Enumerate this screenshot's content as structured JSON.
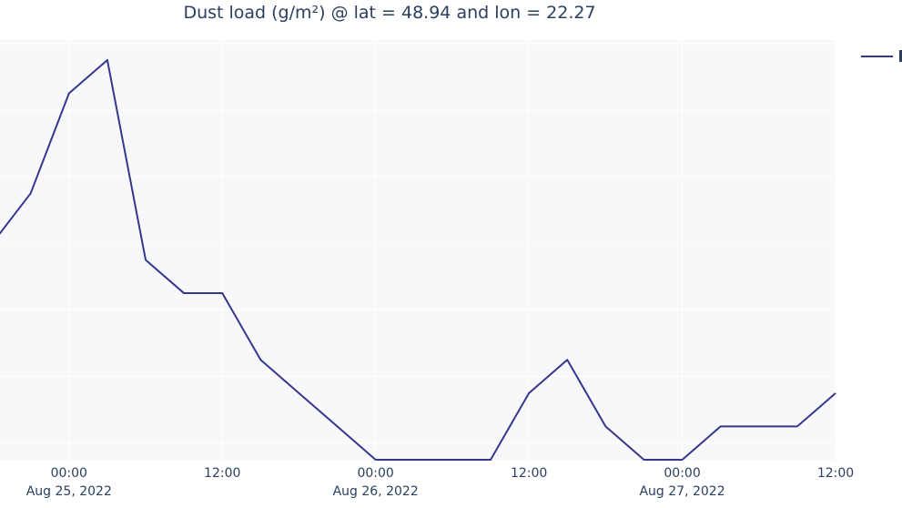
{
  "chart_data": {
    "type": "line",
    "title": "Dust load (g/m²) @ lat = 48.94 and lon = 22.27",
    "xlabel": "",
    "ylabel": "",
    "grid": true,
    "legend_position": "top-right",
    "x_tick_labels": [
      {
        "time": "2022-08-25T00:00",
        "line1": "00:00",
        "line2": "Aug 25, 2022"
      },
      {
        "time": "2022-08-25T12:00",
        "line1": "12:00",
        "line2": ""
      },
      {
        "time": "2022-08-26T00:00",
        "line1": "00:00",
        "line2": "Aug 26, 2022"
      },
      {
        "time": "2022-08-26T12:00",
        "line1": "12:00",
        "line2": ""
      },
      {
        "time": "2022-08-27T00:00",
        "line1": "00:00",
        "line2": "Aug 27, 2022"
      },
      {
        "time": "2022-08-27T12:00",
        "line1": "12:00",
        "line2": ""
      }
    ],
    "x_range": [
      "2022-08-24T18:36",
      "2022-08-27T12:00"
    ],
    "y_range": [
      0,
      12.6
    ],
    "y_gridlines": [
      0.5,
      2.5,
      4.5,
      6.5,
      8.5,
      10.5,
      12.5
    ],
    "series": [
      {
        "color": "#35378f",
        "points": [
          {
            "x": "2022-08-24T18:00",
            "y": 6.5
          },
          {
            "x": "2022-08-24T21:00",
            "y": 8.0
          },
          {
            "x": "2022-08-25T00:00",
            "y": 11.0
          },
          {
            "x": "2022-08-25T03:00",
            "y": 12.0
          },
          {
            "x": "2022-08-25T06:00",
            "y": 6.0
          },
          {
            "x": "2022-08-25T09:00",
            "y": 5.0
          },
          {
            "x": "2022-08-25T12:00",
            "y": 5.0
          },
          {
            "x": "2022-08-25T15:00",
            "y": 3.0
          },
          {
            "x": "2022-08-25T18:00",
            "y": 2.0
          },
          {
            "x": "2022-08-25T21:00",
            "y": 1.0
          },
          {
            "x": "2022-08-26T00:00",
            "y": 0.0
          },
          {
            "x": "2022-08-26T03:00",
            "y": 0.0
          },
          {
            "x": "2022-08-26T06:00",
            "y": 0.0
          },
          {
            "x": "2022-08-26T09:00",
            "y": 0.0
          },
          {
            "x": "2022-08-26T12:00",
            "y": 2.0
          },
          {
            "x": "2022-08-26T15:00",
            "y": 3.0
          },
          {
            "x": "2022-08-26T18:00",
            "y": 1.0
          },
          {
            "x": "2022-08-26T21:00",
            "y": 0.0
          },
          {
            "x": "2022-08-27T00:00",
            "y": 0.0
          },
          {
            "x": "2022-08-27T03:00",
            "y": 1.0
          },
          {
            "x": "2022-08-27T06:00",
            "y": 1.0
          },
          {
            "x": "2022-08-27T09:00",
            "y": 1.0
          },
          {
            "x": "2022-08-27T12:00",
            "y": 2.0
          }
        ]
      }
    ]
  }
}
